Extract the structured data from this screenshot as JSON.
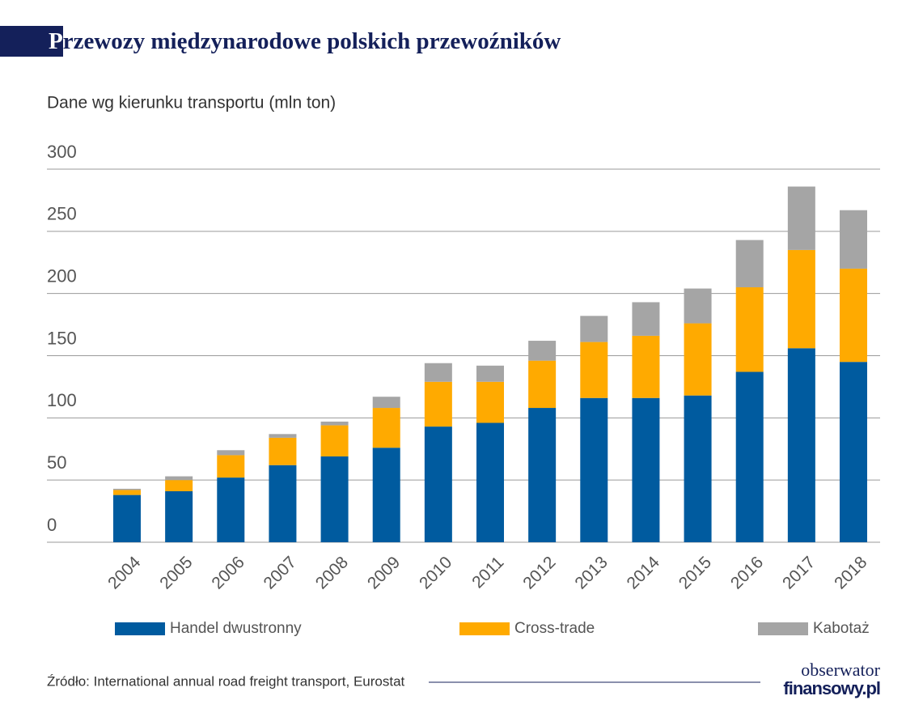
{
  "chart_data": {
    "type": "stacked_bar",
    "title": "Przewozy międzynarodowe polskich przewoźników",
    "subtitle": "Dane wg kierunku transportu (mln ton)",
    "categories": [
      "2004",
      "2005",
      "2006",
      "2007",
      "2008",
      "2009",
      "2010",
      "2011",
      "2012",
      "2013",
      "2014",
      "2015",
      "2016",
      "2017",
      "2018"
    ],
    "series": [
      {
        "name": "Handel dwustronny",
        "color": "#005b9f",
        "values": [
          38,
          41,
          52,
          62,
          69,
          76,
          93,
          96,
          108,
          116,
          116,
          118,
          137,
          156,
          145
        ]
      },
      {
        "name": "Cross-trade",
        "color": "#ffaa00",
        "values": [
          4,
          9,
          18,
          22,
          25,
          32,
          36,
          33,
          38,
          45,
          50,
          58,
          68,
          79,
          75
        ]
      },
      {
        "name": "Kabotaż",
        "color": "#a5a5a5",
        "values": [
          1,
          3,
          4,
          3,
          3,
          9,
          15,
          13,
          16,
          21,
          27,
          28,
          38,
          51,
          47
        ]
      }
    ],
    "ylim": [
      0,
      300
    ],
    "yticks": [
      0,
      50,
      100,
      150,
      200,
      250,
      300
    ],
    "grid": true,
    "legend": "bottom",
    "source": "Źródło: International annual road freight transport, Eurostat",
    "logo": [
      "obserwator",
      "finansowy.pl"
    ]
  }
}
